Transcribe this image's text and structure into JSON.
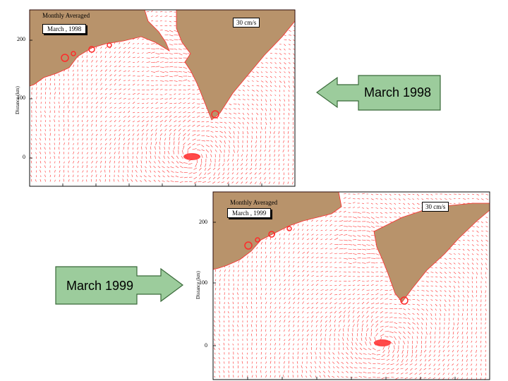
{
  "panels": [
    {
      "id": "p1998",
      "title": "Monthly Averaged",
      "date_label": "March ,  1998",
      "scale_label": "30 cm/s",
      "y_axis_label": "Distance (km)",
      "y_ticks": [
        "200",
        "100",
        "0"
      ]
    },
    {
      "id": "p1999",
      "title": "Monthly Averaged",
      "date_label": "March ,  1999",
      "scale_label": "30 cm/s",
      "y_axis_label": "Distance (km)",
      "y_ticks": [
        "200",
        "100",
        "0"
      ]
    }
  ],
  "callouts": [
    {
      "text": "March 1998"
    },
    {
      "text": "March 1999"
    }
  ],
  "colors": {
    "land": "#b8936b",
    "vectors": "#ff2a2a",
    "callout_fill": "#9ccc9c",
    "callout_stroke": "#3a6a3a"
  }
}
